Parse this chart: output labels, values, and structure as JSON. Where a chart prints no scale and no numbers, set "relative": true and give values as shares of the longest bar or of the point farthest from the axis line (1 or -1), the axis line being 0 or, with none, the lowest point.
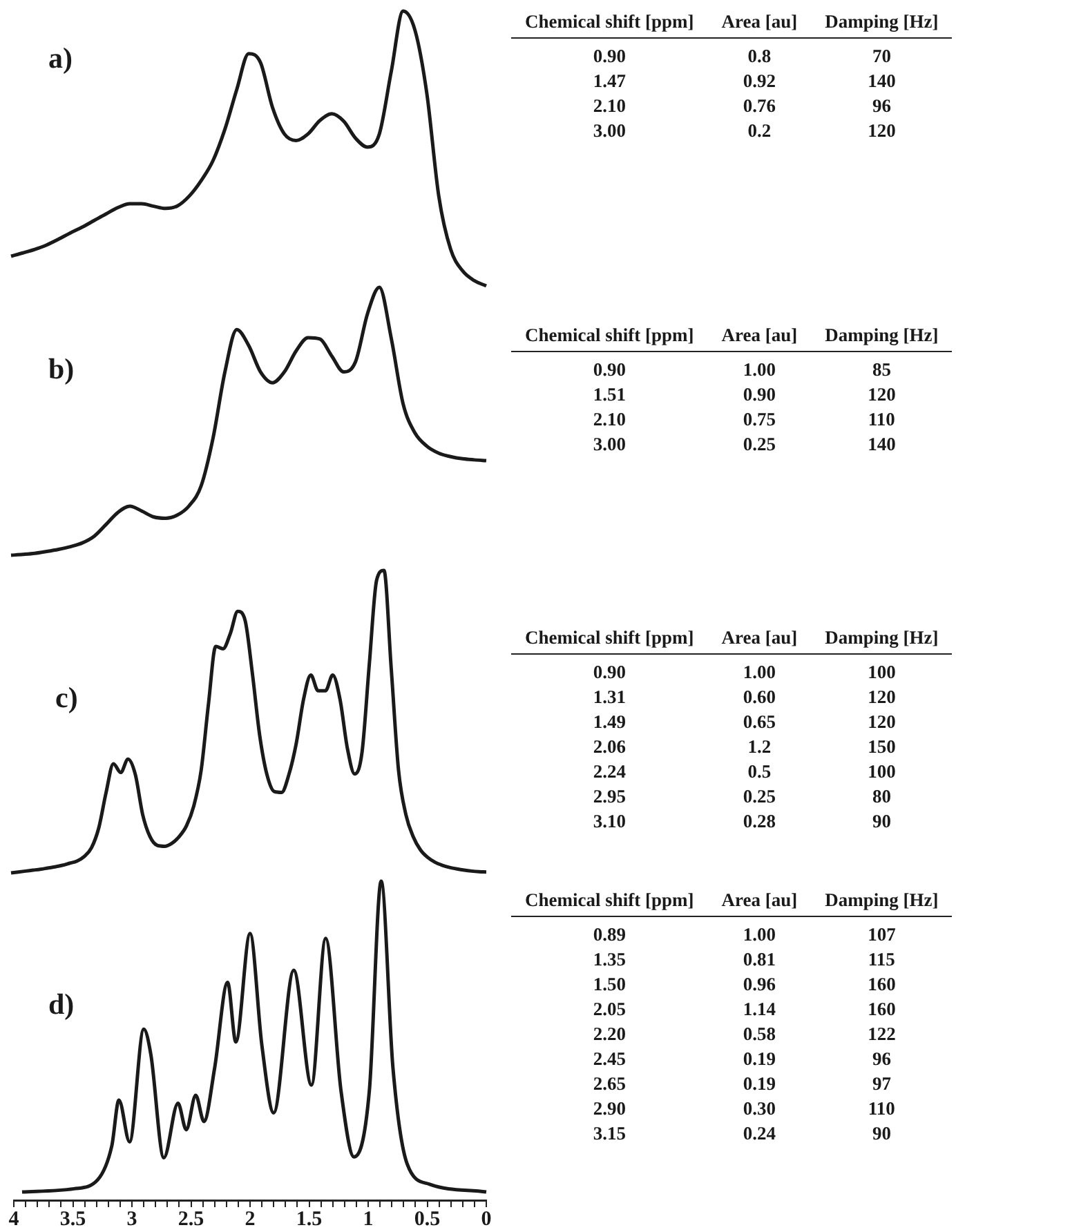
{
  "chart_data": [
    {
      "type": "line",
      "title": "a)",
      "relative": true,
      "tick_labels": false,
      "color": "#1a1a1a",
      "categories": [
        null,
        null,
        null,
        null,
        null,
        null,
        null,
        null,
        null,
        null,
        null,
        null,
        null,
        null,
        null,
        null,
        null,
        null,
        null,
        null,
        null,
        null,
        null,
        null,
        null,
        null,
        null,
        null,
        null,
        null,
        null,
        null,
        null,
        null,
        null,
        null,
        null,
        null,
        null,
        null,
        null
      ],
      "values": [
        0.108,
        0.12,
        0.133,
        0.149,
        0.17,
        0.193,
        0.214,
        0.238,
        0.262,
        0.285,
        0.299,
        0.299,
        0.29,
        0.282,
        0.291,
        0.327,
        0.383,
        0.456,
        0.57,
        0.715,
        0.845,
        0.812,
        0.65,
        0.553,
        0.529,
        0.553,
        0.602,
        0.626,
        0.599,
        0.537,
        0.505,
        0.553,
        0.78,
        1.0,
        0.93,
        0.699,
        0.327,
        0.133,
        0.055,
        0.019,
        0
      ]
    },
    {
      "type": "other",
      "annotations": [
        "Chemical shift [ppm]",
        "Area [au]",
        "Damping [Hz]",
        "0.90",
        "0.8",
        "70",
        "1.47",
        "0.92",
        "140",
        "2.10",
        "0.76",
        "96",
        "3.00",
        "0.2",
        "120"
      ]
    },
    {
      "type": "line",
      "title": "b)",
      "relative": true,
      "tick_labels": false,
      "color": "#1a1a1a",
      "categories": [
        null,
        null,
        null,
        null,
        null,
        null,
        null,
        null,
        null,
        null,
        null,
        null,
        null,
        null,
        null,
        null,
        null,
        null,
        null,
        null,
        null,
        null,
        null,
        null,
        null,
        null,
        null,
        null,
        null,
        null,
        null,
        null,
        null,
        null,
        null,
        null,
        null,
        null,
        null,
        null,
        null
      ],
      "values": [
        0,
        0.003,
        0.007,
        0.014,
        0.022,
        0.032,
        0.046,
        0.071,
        0.115,
        0.16,
        0.183,
        0.165,
        0.143,
        0.138,
        0.15,
        0.185,
        0.259,
        0.437,
        0.684,
        0.842,
        0.783,
        0.684,
        0.644,
        0.684,
        0.763,
        0.812,
        0.807,
        0.743,
        0.684,
        0.723,
        0.901,
        1.0,
        0.81,
        0.565,
        0.456,
        0.407,
        0.381,
        0.368,
        0.36,
        0.356,
        0.353
      ]
    },
    {
      "type": "other",
      "annotations": [
        "Chemical shift [ppm]",
        "Area [au]",
        "Damping [Hz]",
        "0.90",
        "1.00",
        "85",
        "1.51",
        "0.90",
        "120",
        "2.10",
        "0.75",
        "110",
        "3.00",
        "0.25",
        "140"
      ]
    },
    {
      "type": "line",
      "title": "c)",
      "relative": true,
      "tick_labels": false,
      "color": "#1a1a1a",
      "categories": [
        null,
        null,
        null,
        null,
        null,
        null,
        null,
        null,
        null,
        null,
        null,
        null,
        null,
        null,
        null,
        null,
        null,
        null,
        null,
        null,
        null,
        null,
        null,
        null,
        null,
        null,
        null,
        null,
        null,
        null,
        null,
        null,
        null,
        null,
        null,
        null,
        null,
        null,
        null,
        null,
        null,
        null,
        null,
        null,
        null,
        null,
        null,
        null,
        null,
        null,
        null,
        null,
        null,
        null,
        null,
        null,
        null,
        null,
        null,
        null,
        null,
        null,
        null,
        null,
        null,
        null
      ],
      "values": [
        0,
        0.003,
        0.006,
        0.009,
        0.012,
        0.016,
        0.02,
        0.025,
        0.032,
        0.039,
        0.054,
        0.083,
        0.149,
        0.266,
        0.361,
        0.332,
        0.376,
        0.325,
        0.193,
        0.12,
        0.091,
        0.088,
        0.098,
        0.12,
        0.156,
        0.222,
        0.339,
        0.558,
        0.749,
        0.741,
        0.792,
        0.865,
        0.836,
        0.661,
        0.456,
        0.325,
        0.269,
        0.266,
        0.325,
        0.427,
        0.573,
        0.654,
        0.602,
        0.602,
        0.654,
        0.573,
        0.412,
        0.327,
        0.398,
        0.69,
        0.968,
        1.0,
        0.675,
        0.339,
        0.193,
        0.12,
        0.076,
        0.051,
        0.035,
        0.025,
        0.018,
        0.013,
        0.009,
        0.006,
        0.004,
        0.003
      ]
    },
    {
      "type": "other",
      "annotations": [
        "Chemical shift [ppm]",
        "Area [au]",
        "Damping [Hz]",
        "0.90",
        "1.00",
        "100",
        "1.31",
        "0.60",
        "120",
        "1.49",
        "0.65",
        "120",
        "2.06",
        "1.2",
        "150",
        "2.24",
        "0.5",
        "100",
        "2.95",
        "0.25",
        "80",
        "3.10",
        "0.28",
        "90"
      ]
    },
    {
      "type": "line",
      "title": "d)",
      "relative": true,
      "tick_labels": "x",
      "color": "#1a1a1a",
      "x": [
        3.93,
        3.49,
        3.29,
        3.17,
        3.11,
        3.02,
        2.9,
        2.84,
        2.73,
        2.61,
        2.54,
        2.46,
        2.39,
        2.3,
        2.19,
        2.12,
        2.0,
        1.9,
        1.8,
        1.63,
        1.48,
        1.36,
        1.23,
        1.12,
        0.99,
        0.89,
        0.79,
        0.67,
        0.48,
        0
      ],
      "values": [
        0.026,
        0.036,
        0.064,
        0.171,
        0.314,
        0.183,
        0.536,
        0.457,
        0.133,
        0.304,
        0.221,
        0.329,
        0.247,
        0.414,
        0.683,
        0.496,
        0.836,
        0.486,
        0.274,
        0.721,
        0.361,
        0.821,
        0.343,
        0.136,
        0.343,
        1.0,
        0.414,
        0.114,
        0.05,
        0.026
      ],
      "xlim": [
        4,
        0
      ],
      "xticks": [
        4,
        {
          "value": 3.9,
          "label": null
        },
        {
          "value": 3.8,
          "label": null
        },
        {
          "value": 3.7,
          "label": null
        },
        {
          "value": 3.6,
          "label": null
        },
        3.5,
        {
          "value": 3.4,
          "label": null
        },
        {
          "value": 3.3,
          "label": null
        },
        {
          "value": 3.2,
          "label": null
        },
        {
          "value": 3.1,
          "label": null
        },
        3,
        {
          "value": 2.9,
          "label": null
        },
        {
          "value": 2.8,
          "label": null
        },
        {
          "value": 2.7,
          "label": null
        },
        {
          "value": 2.6,
          "label": null
        },
        2.5,
        {
          "value": 2.4,
          "label": null
        },
        {
          "value": 2.3,
          "label": null
        },
        {
          "value": 2.2,
          "label": null
        },
        {
          "value": 2.1,
          "label": null
        },
        2,
        {
          "value": 1.9,
          "label": null
        },
        {
          "value": 1.8,
          "label": null
        },
        {
          "value": 1.7,
          "label": null
        },
        {
          "value": 1.6,
          "label": null
        },
        1.5,
        {
          "value": 1.4,
          "label": null
        },
        {
          "value": 1.3,
          "label": null
        },
        {
          "value": 1.2,
          "label": null
        },
        {
          "value": 1.1,
          "label": null
        },
        1,
        {
          "value": 0.9,
          "label": null
        },
        {
          "value": 0.8,
          "label": null
        },
        {
          "value": 0.7,
          "label": null
        },
        {
          "value": 0.6,
          "label": null
        },
        0.5,
        {
          "value": 0.4,
          "label": null
        },
        {
          "value": 0.3,
          "label": null
        },
        {
          "value": 0.2,
          "label": null
        },
        {
          "value": 0.1,
          "label": null
        },
        0
      ]
    },
    {
      "type": "other",
      "annotations": [
        "Chemical shift [ppm]",
        "Area [au]",
        "Damping [Hz]",
        "0.89",
        "1.00",
        "107",
        "1.35",
        "0.81",
        "115",
        "1.50",
        "0.96",
        "160",
        "2.05",
        "1.14",
        "160",
        "2.20",
        "0.58",
        "122",
        "2.45",
        "0.19",
        "96",
        "2.65",
        "0.19",
        "97",
        "2.90",
        "0.30",
        "110",
        "3.15",
        "0.24",
        "90"
      ]
    }
  ]
}
